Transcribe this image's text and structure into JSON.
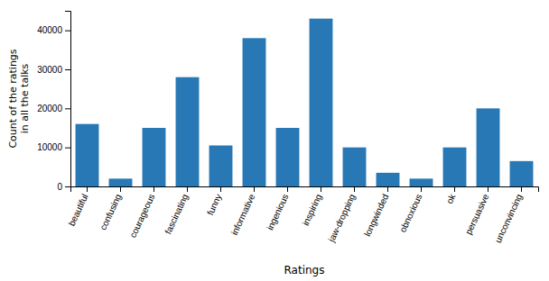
{
  "chart_data": {
    "type": "bar",
    "categories": [
      "beautiful",
      "confusing",
      "courageous",
      "fascinating",
      "funny",
      "informative",
      "ingenious",
      "inspiring",
      "jaw-dropping",
      "longwinded",
      "obnoxious",
      "ok",
      "persuasive",
      "unconvincing"
    ],
    "values": [
      16000,
      2000,
      15000,
      28000,
      10500,
      38000,
      15000,
      43000,
      10000,
      3500,
      2000,
      10000,
      20000,
      6500
    ],
    "color": "#2878b5",
    "xlabel": "Ratings",
    "ylabel": "Count of the ratings\nin all the talks",
    "ylim": [
      0,
      45000
    ],
    "yticks": [
      0,
      10000,
      20000,
      30000,
      40000
    ],
    "grid": false
  }
}
